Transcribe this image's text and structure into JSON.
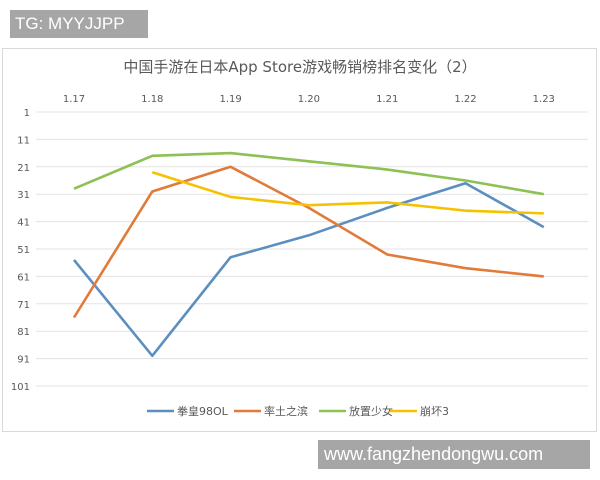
{
  "watermark_top": "TG: MYYJJPP",
  "watermark_bottom": "www.fangzhendongwu.com",
  "chart_data": {
    "type": "line",
    "title": "中国手游在日本App Store游戏畅销榜排名变化（2）",
    "xlabel": "",
    "ylabel": "",
    "categories": [
      "1.17",
      "1.18",
      "1.19",
      "1.20",
      "1.21",
      "1.22",
      "1.23"
    ],
    "y_ticks": [
      "1",
      "11",
      "21",
      "31",
      "41",
      "51",
      "61",
      "71",
      "81",
      "91",
      "101"
    ],
    "ylim": [
      1,
      101
    ],
    "y_reversed": true,
    "grid": true,
    "legend_position": "bottom",
    "series": [
      {
        "name": "拳皇98OL",
        "color": "#5b8fc0",
        "values": [
          55,
          90,
          54,
          46,
          36,
          27,
          43
        ]
      },
      {
        "name": "率土之滨",
        "color": "#e07b39",
        "values": [
          76,
          30,
          21,
          36,
          53,
          58,
          61
        ]
      },
      {
        "name": "放置少女",
        "color": "#8dc153",
        "values": [
          29,
          17,
          16,
          19,
          22,
          26,
          31
        ]
      },
      {
        "name": "崩坏3",
        "color": "#f5c100",
        "values": [
          null,
          23,
          32,
          35,
          34,
          37,
          38
        ]
      }
    ]
  }
}
